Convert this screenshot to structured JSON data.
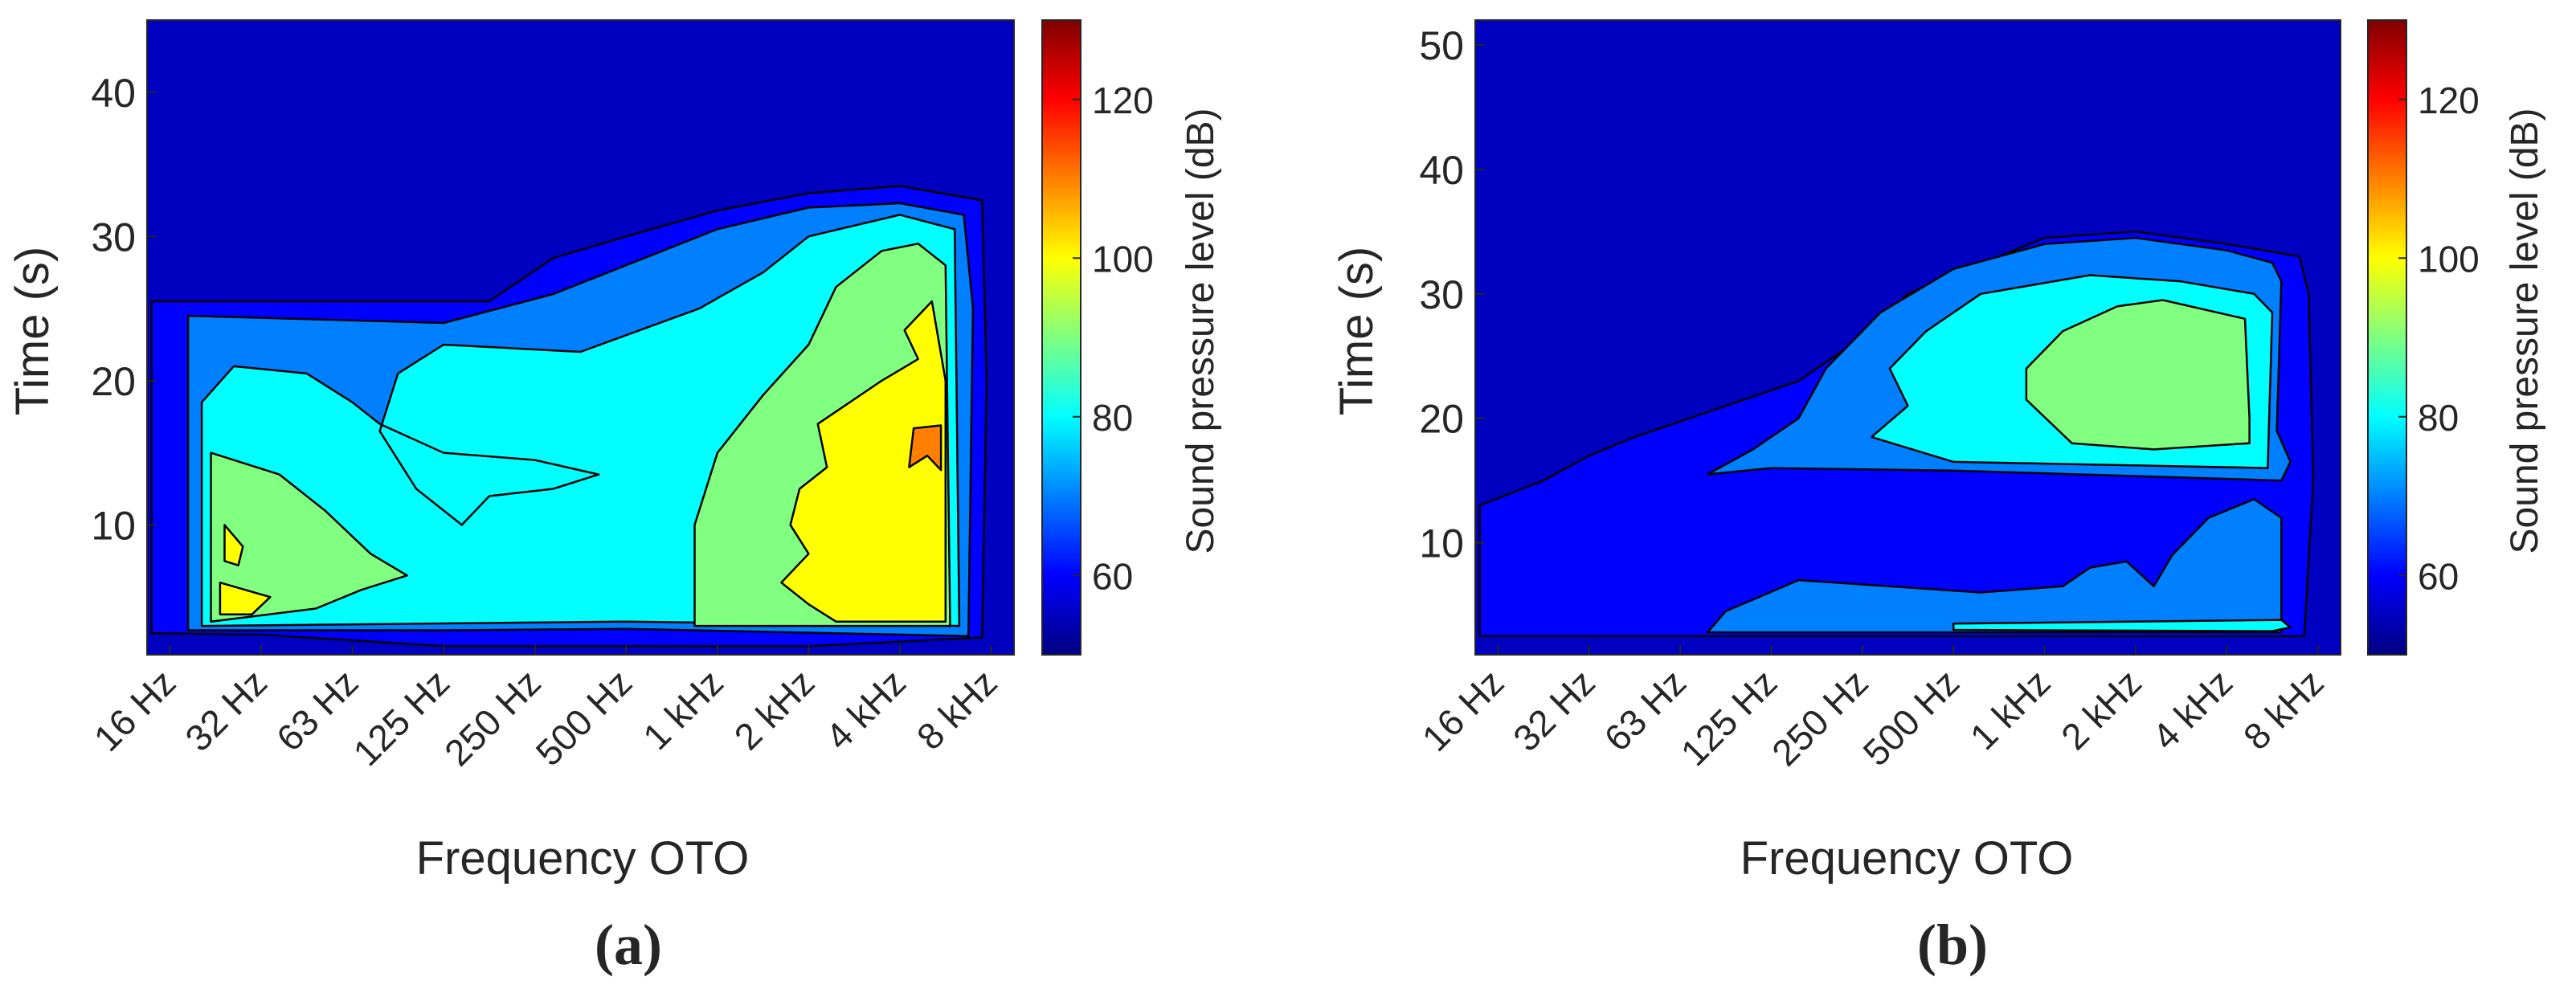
{
  "chart_data": [
    {
      "panel": "(a)",
      "type": "heatmap",
      "subtype": "filled-contour",
      "xlabel": "Frequency OTO",
      "ylabel": "Time (s)",
      "x_categories": [
        "16 Hz",
        "32 Hz",
        "63 Hz",
        "125 Hz",
        "250 Hz",
        "500 Hz",
        "1 kHz",
        "2 kHz",
        "4 kHz",
        "8 kHz"
      ],
      "x": [
        0,
        1,
        2,
        3,
        4,
        5,
        6,
        7,
        8,
        9
      ],
      "xlim": [
        -0.25,
        9.25
      ],
      "y_ticks": [
        10,
        20,
        30,
        40
      ],
      "ylim": [
        1,
        45
      ],
      "z_levels": [
        55,
        60,
        70,
        80,
        90,
        100,
        110
      ],
      "colorbar": {
        "label": "Sound pressure level (dB)",
        "ticks": [
          60,
          80,
          100,
          120
        ],
        "range": [
          50,
          130
        ],
        "colormap": "jet",
        "placement": "right"
      },
      "regions": [
        {
          "z": 60,
          "points": [
            [
              -0.2,
              2.5
            ],
            [
              -0.2,
              25.5
            ],
            [
              3.5,
              25.5
            ],
            [
              4.2,
              28.5
            ],
            [
              5,
              30
            ],
            [
              6,
              31.8
            ],
            [
              7,
              33
            ],
            [
              8,
              33.5
            ],
            [
              8.9,
              32.5
            ],
            [
              8.95,
              20
            ],
            [
              8.9,
              2.2
            ],
            [
              7,
              1.6
            ],
            [
              3,
              1.6
            ],
            [
              1,
              2.4
            ]
          ]
        },
        {
          "z": 70,
          "points": [
            [
              0.2,
              2.7
            ],
            [
              0.2,
              24.5
            ],
            [
              3,
              24
            ],
            [
              4.2,
              26
            ],
            [
              5,
              28
            ],
            [
              6,
              30.5
            ],
            [
              7,
              32
            ],
            [
              8,
              32.3
            ],
            [
              8.7,
              31.5
            ],
            [
              8.8,
              25
            ],
            [
              8.75,
              2.3
            ],
            [
              5,
              2.8
            ],
            [
              3,
              2.7
            ]
          ]
        },
        {
          "z": 80,
          "points": [
            [
              0.35,
              3
            ],
            [
              0.35,
              18.5
            ],
            [
              0.7,
              21
            ],
            [
              1.5,
              20.5
            ],
            [
              2,
              18.5
            ],
            [
              2.3,
              17
            ],
            [
              3,
              15
            ],
            [
              4,
              14.5
            ],
            [
              4.7,
              13.5
            ],
            [
              4.2,
              12.5
            ],
            [
              3.5,
              12
            ],
            [
              3.2,
              10
            ],
            [
              2.7,
              12.5
            ],
            [
              2.3,
              16.5
            ],
            [
              2.5,
              20.5
            ],
            [
              3,
              22.5
            ],
            [
              4.5,
              22
            ],
            [
              5.8,
              25
            ],
            [
              6.5,
              27.5
            ],
            [
              7,
              30
            ],
            [
              8,
              31.5
            ],
            [
              8.6,
              30.5
            ],
            [
              8.65,
              3
            ],
            [
              5,
              3.3
            ]
          ]
        },
        {
          "z": 90,
          "points": [
            [
              0.45,
              3.3
            ],
            [
              0.45,
              15
            ],
            [
              1.2,
              13.5
            ],
            [
              1.7,
              11
            ],
            [
              2.2,
              8
            ],
            [
              2.6,
              6.5
            ],
            [
              2.1,
              5.5
            ],
            [
              1.6,
              4.2
            ]
          ]
        },
        {
          "z": 90,
          "points": [
            [
              5.75,
              3
            ],
            [
              5.75,
              10
            ],
            [
              6,
              15
            ],
            [
              6.5,
              19
            ],
            [
              7,
              22.5
            ],
            [
              7.3,
              26.5
            ],
            [
              7.8,
              29
            ],
            [
              8.2,
              29.5
            ],
            [
              8.5,
              28
            ],
            [
              8.55,
              3
            ]
          ]
        },
        {
          "z": 100,
          "points": [
            [
              0.55,
              3.8
            ],
            [
              0.55,
              6
            ],
            [
              1.1,
              5
            ],
            [
              0.9,
              3.8
            ]
          ]
        },
        {
          "z": 100,
          "points": [
            [
              0.6,
              7.5
            ],
            [
              0.6,
              10
            ],
            [
              0.8,
              8.5
            ],
            [
              0.75,
              7.2
            ]
          ]
        },
        {
          "z": 100,
          "points": [
            [
              7.3,
              3.3
            ],
            [
              7,
              4.5
            ],
            [
              6.7,
              6
            ],
            [
              7,
              8
            ],
            [
              6.8,
              10
            ],
            [
              6.9,
              12.5
            ],
            [
              7.2,
              14
            ],
            [
              7.1,
              17
            ],
            [
              7.8,
              20
            ],
            [
              8.2,
              21.5
            ],
            [
              8.05,
              23.5
            ],
            [
              8.35,
              25.5
            ],
            [
              8.5,
              20
            ],
            [
              8.5,
              3.3
            ]
          ]
        },
        {
          "z": 110,
          "points": [
            [
              8.1,
              14
            ],
            [
              8.15,
              16.7
            ],
            [
              8.45,
              16.9
            ],
            [
              8.45,
              13.8
            ],
            [
              8.3,
              14.8
            ]
          ]
        }
      ]
    },
    {
      "panel": "(b)",
      "type": "heatmap",
      "subtype": "filled-contour",
      "xlabel": "Frequency OTO",
      "ylabel": "Time (s)",
      "x_categories": [
        "16 Hz",
        "32 Hz",
        "63 Hz",
        "125 Hz",
        "250 Hz",
        "500 Hz",
        "1 kHz",
        "2 kHz",
        "4 kHz",
        "8 kHz"
      ],
      "x": [
        0,
        1,
        2,
        3,
        4,
        5,
        6,
        7,
        8,
        9
      ],
      "xlim": [
        -0.25,
        9.25
      ],
      "y_ticks": [
        10,
        20,
        30,
        40,
        50
      ],
      "ylim": [
        1,
        52
      ],
      "z_levels": [
        55,
        60,
        70,
        80,
        90
      ],
      "colorbar": {
        "label": "Sound pressure level (dB)",
        "ticks": [
          60,
          80,
          100,
          120
        ],
        "range": [
          50,
          130
        ],
        "colormap": "jet",
        "placement": "right"
      },
      "regions": [
        {
          "z": 60,
          "points": [
            [
              -0.2,
              2.5
            ],
            [
              -0.2,
              13
            ],
            [
              0.5,
              15
            ],
            [
              1,
              17
            ],
            [
              1.5,
              18.5
            ],
            [
              2.5,
              21
            ],
            [
              3.3,
              23
            ],
            [
              4,
              26.5
            ],
            [
              4.5,
              30
            ],
            [
              5.5,
              33
            ],
            [
              6,
              34.5
            ],
            [
              7,
              35
            ],
            [
              8,
              34
            ],
            [
              8.8,
              33
            ],
            [
              8.9,
              30
            ],
            [
              8.95,
              15
            ],
            [
              8.85,
              2.5
            ]
          ]
        },
        {
          "z": 70,
          "points": [
            [
              2.3,
              15.5
            ],
            [
              2.8,
              17.5
            ],
            [
              3.3,
              20
            ],
            [
              3.6,
              24
            ],
            [
              4.2,
              28.5
            ],
            [
              5,
              32
            ],
            [
              6,
              34
            ],
            [
              7,
              34.5
            ],
            [
              8,
              33.5
            ],
            [
              8.5,
              32.5
            ],
            [
              8.6,
              31
            ],
            [
              8.55,
              19
            ],
            [
              8.7,
              16.5
            ],
            [
              8.6,
              15
            ],
            [
              5,
              15.8
            ],
            [
              3,
              16
            ]
          ]
        },
        {
          "z": 70,
          "points": [
            [
              2.3,
              2.8
            ],
            [
              2.5,
              4.5
            ],
            [
              3.3,
              7
            ],
            [
              5.3,
              6
            ],
            [
              6.2,
              6.5
            ],
            [
              6.5,
              8
            ],
            [
              6.9,
              8.5
            ],
            [
              7.2,
              6.5
            ],
            [
              7.4,
              9
            ],
            [
              7.8,
              12
            ],
            [
              8.3,
              13.5
            ],
            [
              8.6,
              12
            ],
            [
              8.6,
              2.8
            ]
          ]
        },
        {
          "z": 80,
          "points": [
            [
              4.1,
              18.5
            ],
            [
              4.5,
              21
            ],
            [
              4.3,
              24
            ],
            [
              4.7,
              27
            ],
            [
              5.3,
              30
            ],
            [
              6.5,
              31.5
            ],
            [
              7.5,
              31
            ],
            [
              8.3,
              30
            ],
            [
              8.5,
              28.5
            ],
            [
              8.45,
              16
            ],
            [
              5,
              16.5
            ]
          ]
        },
        {
          "z": 80,
          "points": [
            [
              5,
              3
            ],
            [
              5,
              3.5
            ],
            [
              8.6,
              3.8
            ],
            [
              8.7,
              3.2
            ],
            [
              8.5,
              2.9
            ]
          ]
        },
        {
          "z": 90,
          "points": [
            [
              5.8,
              21.5
            ],
            [
              5.8,
              24
            ],
            [
              6.2,
              27
            ],
            [
              6.8,
              29
            ],
            [
              7.3,
              29.5
            ],
            [
              8.2,
              28
            ],
            [
              8.25,
              20
            ],
            [
              8.25,
              18
            ],
            [
              7.2,
              17.5
            ],
            [
              6.3,
              18
            ]
          ]
        }
      ]
    }
  ],
  "colorbar_colors": [
    "#000080",
    "#0000ff",
    "#00ffff",
    "#ffff00",
    "#ff0000",
    "#800000"
  ]
}
